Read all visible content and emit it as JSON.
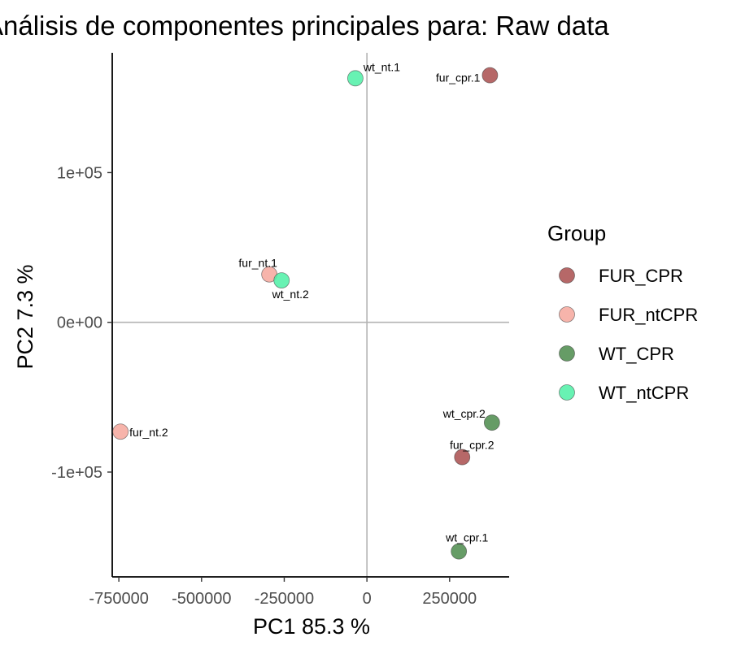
{
  "chart_data": {
    "type": "scatter",
    "title": "Análisis de componentes principales para: Raw data",
    "xlabel": "PC1 85.3 %",
    "ylabel": "PC2 7.3 %",
    "xlim": [
      -770000,
      430000
    ],
    "ylim": [
      -170000,
      180000
    ],
    "x_ticks": [
      -750000,
      -500000,
      -250000,
      0,
      250000
    ],
    "x_tick_labels": [
      "-750000",
      "-500000",
      "-250000",
      "0",
      "250000"
    ],
    "y_ticks": [
      -100000,
      0,
      100000
    ],
    "y_tick_labels": [
      "-1e+05",
      "0e+00",
      "1e+05"
    ],
    "reference_lines": {
      "x": 0,
      "y": 0
    },
    "grid": false,
    "legend_title": "Group",
    "legend_position": "right",
    "groups": [
      {
        "name": "FUR_CPR",
        "color": "#a94d4d"
      },
      {
        "name": "FUR_ntCPR",
        "color": "#f6a79c"
      },
      {
        "name": "WT_CPR",
        "color": "#4b8b4b"
      },
      {
        "name": "WT_ntCPR",
        "color": "#4ef0a6"
      }
    ],
    "points": [
      {
        "label": "wt_nt.1",
        "group": "WT_ntCPR",
        "x": -35000,
        "y": 163000
      },
      {
        "label": "fur_cpr.1",
        "group": "FUR_CPR",
        "x": 372000,
        "y": 165000
      },
      {
        "label": "fur_nt.1",
        "group": "FUR_ntCPR",
        "x": -295000,
        "y": 32000
      },
      {
        "label": "wt_nt.2",
        "group": "WT_ntCPR",
        "x": -258000,
        "y": 28000
      },
      {
        "label": "fur_nt.2",
        "group": "FUR_ntCPR",
        "x": -745000,
        "y": -73000
      },
      {
        "label": "wt_cpr.2",
        "group": "WT_CPR",
        "x": 378000,
        "y": -67000
      },
      {
        "label": "fur_cpr.2",
        "group": "FUR_CPR",
        "x": 288000,
        "y": -90000
      },
      {
        "label": "wt_cpr.1",
        "group": "WT_CPR",
        "x": 278000,
        "y": -153000
      }
    ]
  }
}
